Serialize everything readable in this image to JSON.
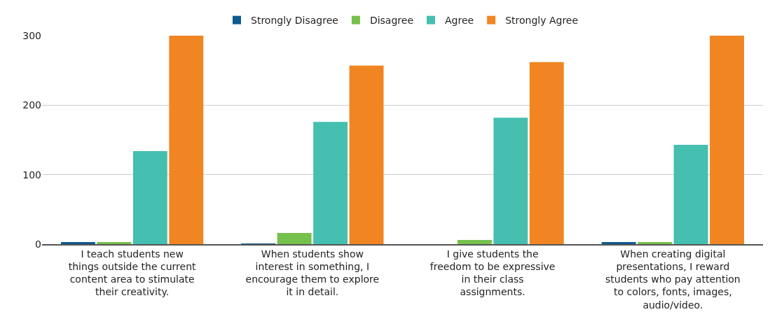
{
  "chart_data": {
    "type": "bar",
    "categories": [
      "I teach students new things outside the current content area to stimulate their creativity.",
      "When students show interest in something, I encourage them to explore it in detail.",
      "I give students the freedom to be expressive in their class assignments.",
      "When creating digital presentations, I reward students who pay attention to colors, fonts, images, audio/video."
    ],
    "series": [
      {
        "name": "Strongly Disagree",
        "color": "#0f5a8f",
        "values": [
          3,
          1,
          0,
          3
        ]
      },
      {
        "name": "Disagree",
        "color": "#76c04c",
        "values": [
          3,
          16,
          6,
          3
        ]
      },
      {
        "name": "Agree",
        "color": "#45bfb0",
        "values": [
          134,
          176,
          182,
          143
        ]
      },
      {
        "name": "Strongly Agree",
        "color": "#f08522",
        "values": [
          300,
          257,
          262,
          300
        ]
      }
    ],
    "ylim": [
      0,
      300
    ],
    "yticks": [
      0,
      100,
      200,
      300
    ],
    "grid": "y",
    "legend": "top"
  }
}
